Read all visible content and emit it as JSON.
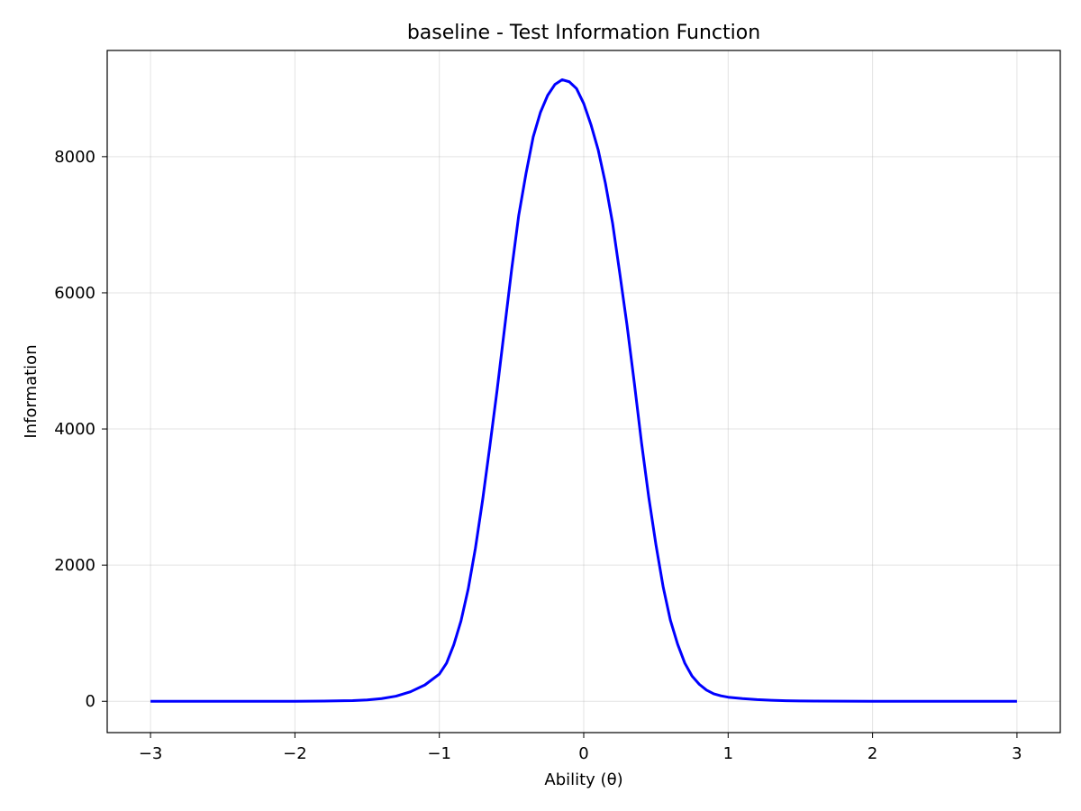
{
  "chart_data": {
    "type": "line",
    "title": "baseline - Test Information Function",
    "xlabel": "Ability (θ)",
    "ylabel": "Information",
    "xlim": [
      -3.3,
      3.3
    ],
    "ylim": [
      -460,
      9560
    ],
    "grid": true,
    "x_ticks": [
      -3,
      -2,
      -1,
      0,
      1,
      2,
      3
    ],
    "x_tick_labels": [
      "−3",
      "−2",
      "−1",
      "0",
      "1",
      "2",
      "3"
    ],
    "y_ticks": [
      0,
      2000,
      4000,
      6000,
      8000
    ],
    "y_tick_labels": [
      "0",
      "2000",
      "4000",
      "6000",
      "8000"
    ],
    "series": [
      {
        "color": "#0000ff",
        "x": [
          -3.0,
          -2.5,
          -2.0,
          -1.8,
          -1.6,
          -1.5,
          -1.4,
          -1.3,
          -1.2,
          -1.1,
          -1.0,
          -0.95,
          -0.9,
          -0.85,
          -0.8,
          -0.75,
          -0.7,
          -0.65,
          -0.6,
          -0.55,
          -0.5,
          -0.45,
          -0.4,
          -0.35,
          -0.3,
          -0.25,
          -0.2,
          -0.15,
          -0.1,
          -0.05,
          0.0,
          0.05,
          0.1,
          0.15,
          0.2,
          0.25,
          0.3,
          0.35,
          0.4,
          0.45,
          0.5,
          0.55,
          0.6,
          0.65,
          0.7,
          0.75,
          0.8,
          0.85,
          0.9,
          0.95,
          1.0,
          1.1,
          1.2,
          1.3,
          1.4,
          1.5,
          1.6,
          1.8,
          2.0,
          2.5,
          3.0
        ],
        "values": [
          0,
          0,
          0,
          3,
          10,
          20,
          40,
          75,
          140,
          240,
          400,
          560,
          830,
          1180,
          1650,
          2250,
          2960,
          3750,
          4570,
          5450,
          6330,
          7140,
          7750,
          8290,
          8650,
          8900,
          9060,
          9130,
          9100,
          9000,
          8780,
          8470,
          8100,
          7610,
          7020,
          6280,
          5520,
          4680,
          3800,
          3000,
          2300,
          1680,
          1190,
          840,
          560,
          370,
          250,
          165,
          110,
          80,
          60,
          40,
          25,
          15,
          8,
          5,
          3,
          1,
          0,
          0,
          0
        ]
      }
    ]
  }
}
